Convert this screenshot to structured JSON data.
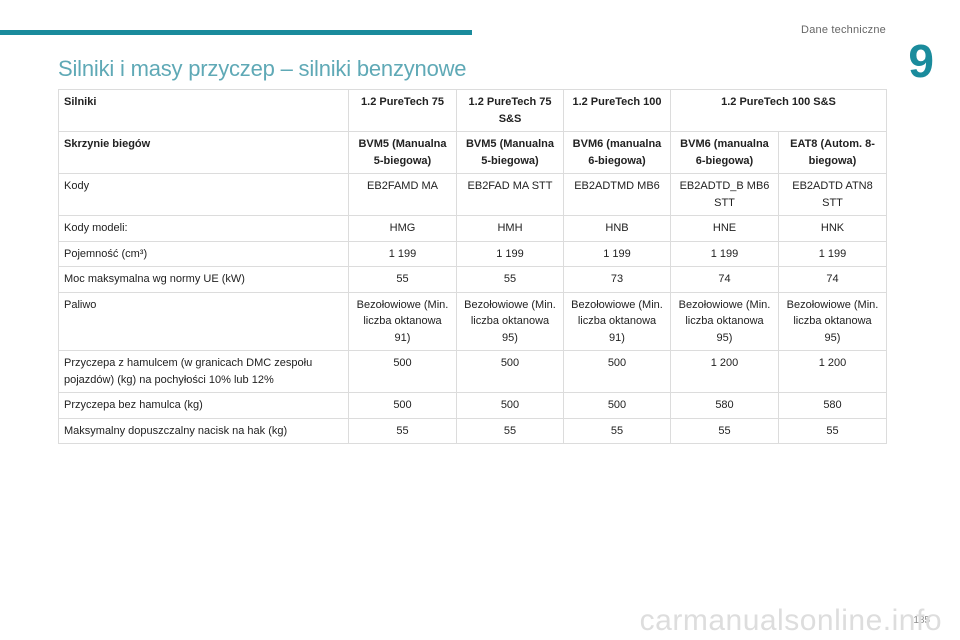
{
  "header": {
    "section_label": "Dane techniczne",
    "chapter_number": "9"
  },
  "title": "Silniki i masy przyczep – silniki benzynowe",
  "table": {
    "header": {
      "label": "Silniki",
      "engines": [
        "1.2 PureTech 75",
        "1.2 PureTech 75 S&S",
        "1.2 PureTech 100",
        "1.2 PureTech 100 S&S"
      ]
    },
    "gearbox": {
      "label": "Skrzynie biegów",
      "values": [
        "BVM5 (Manualna 5-biegowa)",
        "BVM5 (Manualna 5-biegowa)",
        "BVM6 (manualna 6-biegowa)",
        "BVM6 (manualna 6-biegowa)",
        "EAT8 (Autom. 8-biegowa)"
      ]
    },
    "codes": {
      "label": "Kody",
      "values": [
        "EB2FAMD MA",
        "EB2FAD MA STT",
        "EB2ADTMD MB6",
        "EB2ADTD_B MB6 STT",
        "EB2ADTD ATN8 STT"
      ]
    },
    "model_codes": {
      "label": "Kody modeli:",
      "values": [
        "HMG",
        "HMH",
        "HNB",
        "HNE",
        "HNK"
      ]
    },
    "displacement": {
      "label": "Pojemność (cm³)",
      "values": [
        "1 199",
        "1 199",
        "1 199",
        "1 199",
        "1 199"
      ]
    },
    "max_power": {
      "label": "Moc maksymalna wg normy UE (kW)",
      "values": [
        "55",
        "55",
        "73",
        "74",
        "74"
      ]
    },
    "fuel": {
      "label": "Paliwo",
      "values": [
        "Bezołowiowe (Min. liczba oktanowa 91)",
        "Bezołowiowe (Min. liczba oktanowa 95)",
        "Bezołowiowe (Min. liczba oktanowa 91)",
        "Bezołowiowe (Min. liczba oktanowa 95)",
        "Bezołowiowe (Min. liczba oktanowa 95)"
      ]
    },
    "braked_trailer": {
      "label": "Przyczepa z hamulcem (w granicach DMC zespołu pojazdów) (kg) na pochyłości 10% lub 12%",
      "values": [
        "500",
        "500",
        "500",
        "1 200",
        "1 200"
      ]
    },
    "unbraked_trailer": {
      "label": "Przyczepa bez hamulca (kg)",
      "values": [
        "500",
        "500",
        "500",
        "580",
        "580"
      ]
    },
    "towball_load": {
      "label": "Maksymalny dopuszczalny nacisk na hak (kg)",
      "values": [
        "55",
        "55",
        "55",
        "55",
        "55"
      ]
    }
  },
  "footer": {
    "page_number": "185",
    "watermark": "carmanualsonline.info"
  }
}
